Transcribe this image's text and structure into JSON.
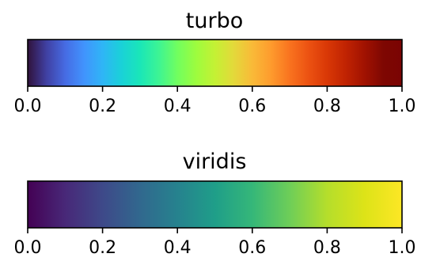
{
  "chart_data": [
    {
      "type": "colorbar",
      "title": "turbo",
      "colormap": "turbo",
      "xlim": [
        0.0,
        1.0
      ],
      "ticks": [
        0.0,
        0.2,
        0.4,
        0.6,
        0.8,
        1.0
      ],
      "tick_labels": [
        "0.0",
        "0.2",
        "0.4",
        "0.6",
        "0.8",
        "1.0"
      ],
      "color_stops": [
        {
          "v": 0.0,
          "c": "#30123b"
        },
        {
          "v": 0.05,
          "c": "#4040a2"
        },
        {
          "v": 0.1,
          "c": "#466be3"
        },
        {
          "v": 0.15,
          "c": "#4193fd"
        },
        {
          "v": 0.2,
          "c": "#2fb5f6"
        },
        {
          "v": 0.25,
          "c": "#1ad1d8"
        },
        {
          "v": 0.3,
          "c": "#1ae6b8"
        },
        {
          "v": 0.35,
          "c": "#3df494"
        },
        {
          "v": 0.4,
          "c": "#71fe5f"
        },
        {
          "v": 0.45,
          "c": "#9dfc3e"
        },
        {
          "v": 0.5,
          "c": "#c4f134"
        },
        {
          "v": 0.55,
          "c": "#e3d93a"
        },
        {
          "v": 0.6,
          "c": "#f9ba38"
        },
        {
          "v": 0.65,
          "c": "#fe9b2d"
        },
        {
          "v": 0.7,
          "c": "#f9731f"
        },
        {
          "v": 0.75,
          "c": "#ec5212"
        },
        {
          "v": 0.8,
          "c": "#d93806"
        },
        {
          "v": 0.85,
          "c": "#c02302"
        },
        {
          "v": 0.9,
          "c": "#a11201"
        },
        {
          "v": 0.95,
          "c": "#7e0702"
        },
        {
          "v": 1.0,
          "c": "#7a0403"
        }
      ]
    },
    {
      "type": "colorbar",
      "title": "viridis",
      "colormap": "viridis",
      "xlim": [
        0.0,
        1.0
      ],
      "ticks": [
        0.0,
        0.2,
        0.4,
        0.6,
        0.8,
        1.0
      ],
      "tick_labels": [
        "0.0",
        "0.2",
        "0.4",
        "0.6",
        "0.8",
        "1.0"
      ],
      "color_stops": [
        {
          "v": 0.0,
          "c": "#440154"
        },
        {
          "v": 0.1,
          "c": "#482878"
        },
        {
          "v": 0.2,
          "c": "#3e4989"
        },
        {
          "v": 0.3,
          "c": "#31688e"
        },
        {
          "v": 0.4,
          "c": "#26828e"
        },
        {
          "v": 0.5,
          "c": "#1f9e89"
        },
        {
          "v": 0.6,
          "c": "#35b779"
        },
        {
          "v": 0.7,
          "c": "#6ece58"
        },
        {
          "v": 0.8,
          "c": "#b5de2b"
        },
        {
          "v": 0.9,
          "c": "#dde318"
        },
        {
          "v": 1.0,
          "c": "#fde725"
        }
      ]
    }
  ]
}
